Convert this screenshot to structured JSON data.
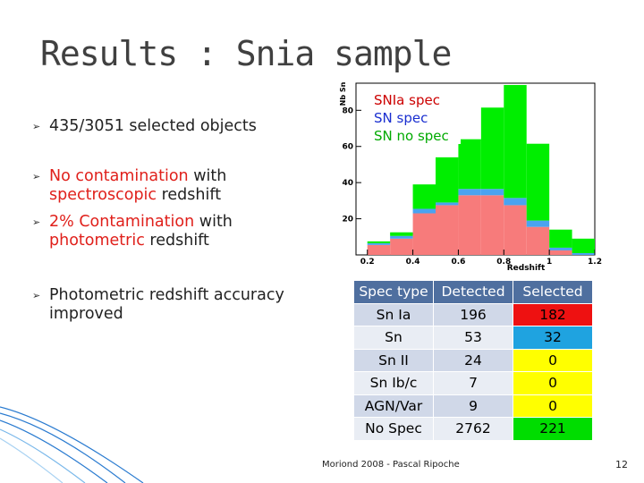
{
  "header": {
    "title": "Results : Snia sample"
  },
  "bullets": [
    [
      "435",
      "/3051 selected objects"
    ],
    [
      "No contamination",
      "with",
      "spectroscopic",
      "redshift"
    ],
    [
      "2% Contamination",
      "with",
      "photometric",
      "redshift"
    ],
    [
      "Photometric redshift accuracy improved"
    ]
  ],
  "chart_data": {
    "type": "histogram",
    "x_label": "Redshift",
    "y_label": "Nb Sn",
    "bins": [
      0.2,
      0.3,
      0.4,
      0.5,
      0.6,
      0.7,
      0.8,
      0.9,
      1.0,
      1.1,
      1.2
    ],
    "series": [
      {
        "name": "SNIa spec",
        "color": "#f77b7b",
        "text_color": "#cc0000",
        "values": [
          5.5,
          9,
          23,
          27.5,
          33,
          33,
          27.5,
          15.5,
          2.5,
          0
        ]
      },
      {
        "name": "SN spec",
        "color": "#4aa3f0",
        "text_color": "#1a2fd0",
        "values": [
          1,
          1.5,
          2.5,
          1.5,
          3.5,
          3.5,
          4,
          3.5,
          1.5,
          1
        ]
      },
      {
        "name": "SN no spec",
        "color": "#00ee00",
        "text_color": "#00aa00",
        "values": [
          1,
          2,
          13.5,
          25,
          27.5,
          45,
          62.5,
          42.5,
          10,
          8
        ]
      }
    ],
    "xlim": [
      0.15,
      1.2
    ],
    "xticks": [
      0.2,
      0.4,
      0.6,
      0.8,
      1,
      1.2
    ],
    "ylim": [
      0,
      95
    ],
    "yticks": [
      20,
      40,
      60,
      80
    ],
    "legend": "upper left"
  },
  "table": {
    "header": [
      "Spec type",
      "Detected",
      "Selected"
    ],
    "rows": [
      [
        "Sn Ia",
        196,
        182
      ],
      [
        "Sn",
        53,
        32
      ],
      [
        "Sn II",
        24,
        0
      ],
      [
        "Sn Ib/c",
        7,
        0
      ],
      [
        "AGN/Var",
        9,
        0
      ],
      [
        "No Spec",
        2762,
        221
      ]
    ],
    "selected_colors": [
      "#ee1111",
      "#1fa3e0",
      "#ffff00",
      "#ffff00",
      "#ffff00",
      "#00dd00"
    ]
  },
  "footer": {
    "source": "Moriond 2008 - Pascal Ripoche",
    "page": 12
  }
}
